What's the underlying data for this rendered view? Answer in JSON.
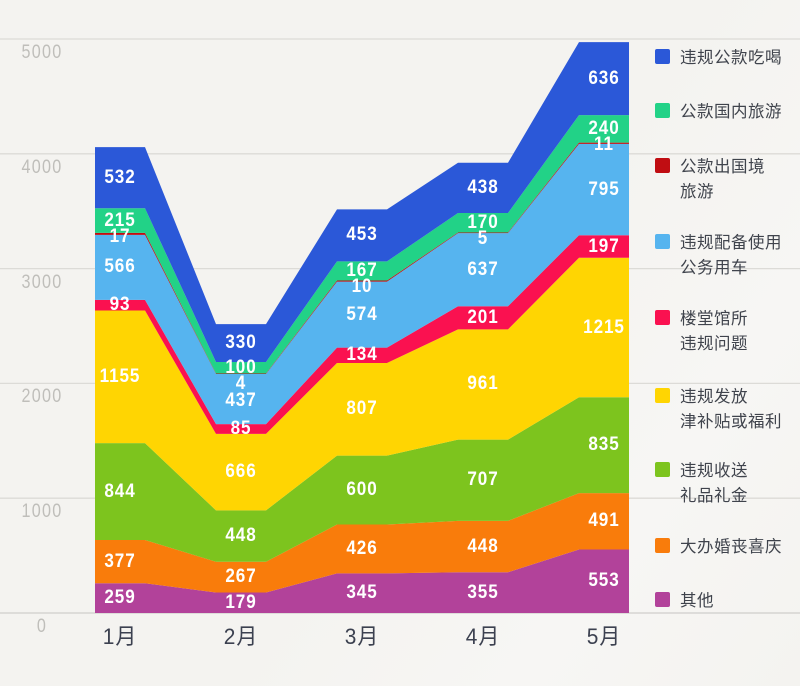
{
  "chart_data": {
    "type": "area",
    "stacked": true,
    "categories": [
      "1月",
      "2月",
      "3月",
      "4月",
      "5月"
    ],
    "ylim": [
      0,
      5000
    ],
    "y_ticks": [
      0,
      1000,
      2000,
      3000,
      4000,
      5000
    ],
    "y_tick_labels": [
      "0",
      "1000",
      "2000",
      "3000",
      "4000",
      "5000"
    ],
    "grid": true,
    "legend_position": "right",
    "value_labels_shown": true,
    "series": [
      {
        "name": "违规公款吃喝",
        "legend_lines": [
          "违规公款吃喝"
        ],
        "color": "#2b58d8",
        "values": [
          532,
          330,
          453,
          438,
          636
        ]
      },
      {
        "name": "公款国内旅游",
        "legend_lines": [
          "公款国内旅游"
        ],
        "color": "#22d287",
        "values": [
          215,
          100,
          167,
          170,
          240
        ]
      },
      {
        "name": "公款出国境旅游",
        "legend_lines": [
          "公款出国境",
          "旅游"
        ],
        "color": "#c00d12",
        "values": [
          17,
          4,
          10,
          5,
          11
        ]
      },
      {
        "name": "违规配备使用公务用车",
        "legend_lines": [
          "违规配备使用",
          "公务用车"
        ],
        "color": "#56b4ef",
        "values": [
          566,
          437,
          574,
          637,
          795
        ]
      },
      {
        "name": "楼堂馆所违规问题",
        "legend_lines": [
          "楼堂馆所",
          "违规问题"
        ],
        "color": "#fa1150",
        "values": [
          93,
          85,
          134,
          201,
          197
        ]
      },
      {
        "name": "违规发放津补贴或福利",
        "legend_lines": [
          "违规发放",
          "津补贴或福利"
        ],
        "color": "#ffd502",
        "values": [
          1155,
          666,
          807,
          961,
          1215
        ]
      },
      {
        "name": "违规收送礼品礼金",
        "legend_lines": [
          "违规收送",
          "礼品礼金"
        ],
        "color": "#7dc41e",
        "values": [
          844,
          448,
          600,
          707,
          835
        ]
      },
      {
        "name": "大办婚丧喜庆",
        "legend_lines": [
          "大办婚丧喜庆"
        ],
        "color": "#f97c0b",
        "values": [
          377,
          267,
          426,
          448,
          491
        ]
      },
      {
        "name": "其他",
        "legend_lines": [
          "其他"
        ],
        "color": "#b2429a",
        "values": [
          259,
          179,
          345,
          355,
          553
        ]
      }
    ],
    "colors": {
      "background": "#f5f4f1",
      "gridline": "#dcdbd7",
      "axis_tick_text": "#bfbeba",
      "month_text": "#3c4150",
      "value_text": "#ffffff",
      "legend_text": "#3f434c"
    }
  }
}
